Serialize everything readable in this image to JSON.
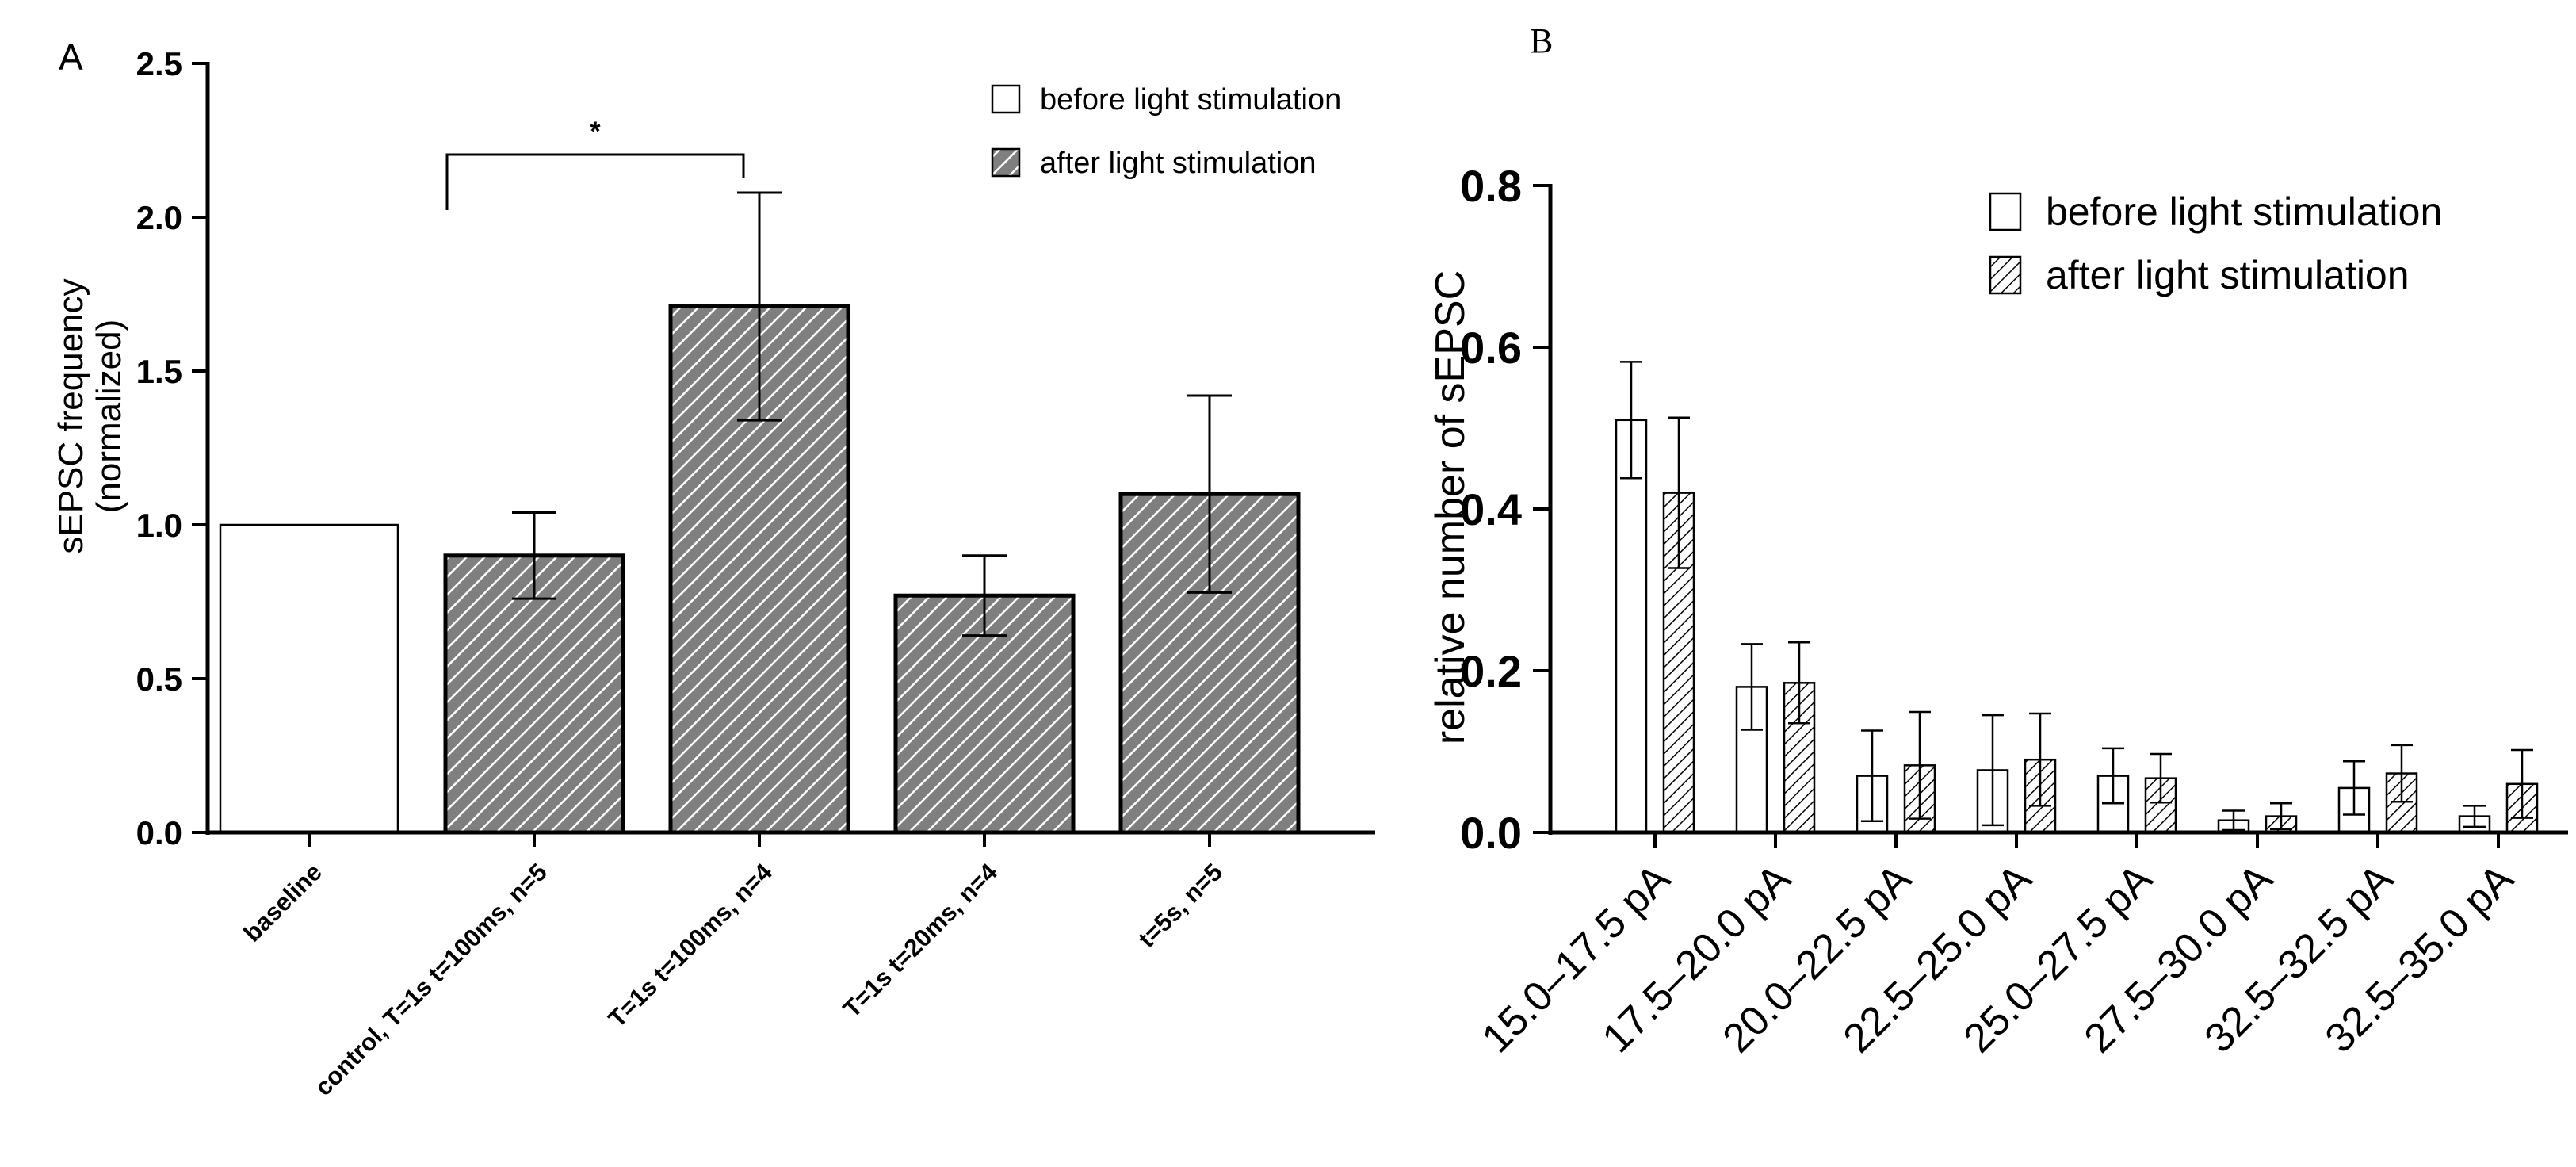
{
  "colors": {
    "bar_fill_after_A": "#7f7f7f",
    "bar_fill_after_B": "#c8c8c8",
    "bar_fill_before": "#ffffff",
    "stroke": "#000000"
  },
  "chart_data": [
    {
      "panel": "A",
      "type": "bar",
      "panel_label": "A",
      "title": "",
      "xlabel": "",
      "ylabel_line1": "sEPSC frequency",
      "ylabel_line2": "(normalized)",
      "ylim": [
        0,
        2.5
      ],
      "yticks": [
        0.0,
        0.5,
        1.0,
        1.5,
        2.0,
        2.5
      ],
      "ytick_labels": [
        "0.0",
        "0.5",
        "1.0",
        "1.5",
        "2.0",
        "2.5"
      ],
      "categories": [
        "baseline",
        "control, T=1s t=100ms, n=5",
        "T=1s  t=100ms, n=4",
        "T=1s t=20ms, n=4",
        "t=5s, n=5"
      ],
      "values": [
        1.0,
        0.9,
        1.71,
        0.77,
        1.1
      ],
      "errors": [
        0,
        0.14,
        0.37,
        0.13,
        0.32
      ],
      "styles": [
        "before",
        "after",
        "after",
        "after",
        "after"
      ],
      "legend": [
        {
          "label": "before light stimulation",
          "style": "before"
        },
        {
          "label": "after light stimulation",
          "style": "after"
        }
      ],
      "legend_position": "top-right",
      "significance": {
        "from": 1,
        "to": 2,
        "label": "*"
      }
    },
    {
      "panel": "B",
      "type": "bar",
      "panel_label": "B",
      "title": "",
      "xlabel": "",
      "ylabel": "relative number of sEPSC",
      "ylim": [
        0,
        0.8
      ],
      "yticks": [
        0.0,
        0.2,
        0.4,
        0.6,
        0.8
      ],
      "ytick_labels": [
        "0.0",
        "0.2",
        "0.4",
        "0.6",
        "0.8"
      ],
      "categories": [
        "15.0–17.5 pA",
        "17.5–20.0 pA",
        "20.0–22.5 pA",
        "22.5–25.0 pA",
        "25.0–27.5 pA",
        "27.5–30.0 pA",
        "32.5–32.5 pA",
        "32.5–35.0 pA"
      ],
      "series": [
        {
          "name": "before light stimulation",
          "style": "before",
          "values": [
            0.51,
            0.18,
            0.07,
            0.077,
            0.07,
            0.015,
            0.055,
            0.02
          ],
          "errors": [
            0.072,
            0.053,
            0.056,
            0.068,
            0.034,
            0.012,
            0.033,
            0.013
          ]
        },
        {
          "name": "after light stimulation",
          "style": "after",
          "values": [
            0.42,
            0.185,
            0.083,
            0.09,
            0.067,
            0.02,
            0.073,
            0.06
          ],
          "errors": [
            0.093,
            0.05,
            0.066,
            0.057,
            0.03,
            0.016,
            0.035,
            0.042
          ]
        }
      ],
      "legend_position": "top-right"
    }
  ]
}
